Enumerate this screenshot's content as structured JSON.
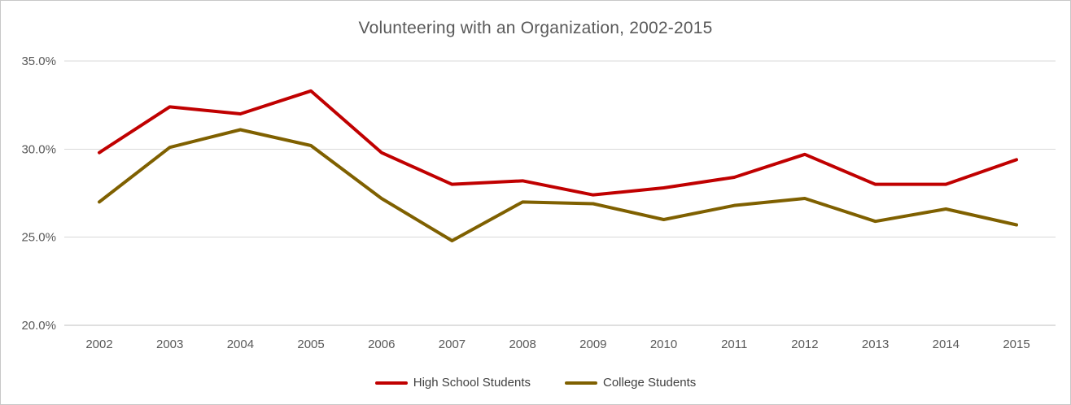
{
  "chart_data": {
    "type": "line",
    "title": "Volunteering with an Organization, 2002-2015",
    "categories": [
      "2002",
      "2003",
      "2004",
      "2005",
      "2006",
      "2007",
      "2008",
      "2009",
      "2010",
      "2011",
      "2012",
      "2013",
      "2014",
      "2015"
    ],
    "series": [
      {
        "name": "High School Students",
        "color": "#C00000",
        "values": [
          29.8,
          32.4,
          32.0,
          33.3,
          29.8,
          28.0,
          28.2,
          27.4,
          27.8,
          28.4,
          29.7,
          28.0,
          28.0,
          29.4
        ]
      },
      {
        "name": "College Students",
        "color": "#7F6000",
        "values": [
          27.0,
          30.1,
          31.1,
          30.2,
          27.2,
          24.8,
          27.0,
          26.9,
          26.0,
          26.8,
          27.2,
          25.9,
          26.6,
          25.7
        ]
      }
    ],
    "xlabel": "",
    "ylabel": "",
    "ylim": [
      20,
      35
    ],
    "ytick_step": 5,
    "ytick_suffix": "%",
    "grid": true,
    "legend_position": "bottom",
    "colors": {
      "grid": "#D9D9D9",
      "axis": "#BFBFBF",
      "tick_text": "#595959",
      "title_text": "#595959"
    }
  }
}
